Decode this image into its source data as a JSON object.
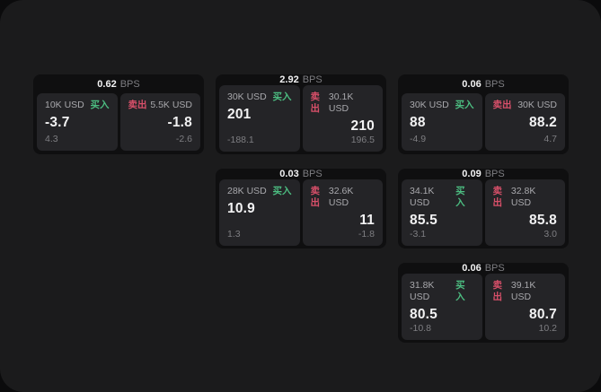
{
  "labels": {
    "buy": "买入",
    "sell": "卖出",
    "bps_suffix": "BPS"
  },
  "colors": {
    "page_bg": "#0b0b0c",
    "window_bg": "#1b1b1c",
    "card_bg": "#0f0f10",
    "panel_bg": "#242427",
    "text_primary": "#f2f2f3",
    "text_secondary": "#a8a8ac",
    "text_dim": "#7e7e82",
    "accent_buy": "#4cbd81",
    "accent_sell": "#d9506a"
  },
  "cards": [
    {
      "bps": "0.62",
      "buy": {
        "amount": "10K USD",
        "value": "-3.7",
        "delta": "4.3"
      },
      "sell": {
        "amount": "5.5K USD",
        "value": "-1.8",
        "delta": "-2.6"
      }
    },
    {
      "bps": "2.92",
      "buy": {
        "amount": "30K USD",
        "value": "201",
        "delta": "-188.1"
      },
      "sell": {
        "amount": "30.1K USD",
        "value": "210",
        "delta": "196.5"
      }
    },
    {
      "bps": "0.06",
      "buy": {
        "amount": "30K USD",
        "value": "88",
        "delta": "-4.9"
      },
      "sell": {
        "amount": "30K USD",
        "value": "88.2",
        "delta": "4.7"
      }
    },
    {
      "bps": "0.03",
      "buy": {
        "amount": "28K USD",
        "value": "10.9",
        "delta": "1.3"
      },
      "sell": {
        "amount": "32.6K USD",
        "value": "11",
        "delta": "-1.8"
      }
    },
    {
      "bps": "0.09",
      "buy": {
        "amount": "34.1K USD",
        "value": "85.5",
        "delta": "-3.1"
      },
      "sell": {
        "amount": "32.8K USD",
        "value": "85.8",
        "delta": "3.0"
      }
    },
    {
      "bps": "0.06",
      "buy": {
        "amount": "31.8K USD",
        "value": "80.5",
        "delta": "-10.8"
      },
      "sell": {
        "amount": "39.1K USD",
        "value": "80.7",
        "delta": "10.2"
      }
    }
  ]
}
